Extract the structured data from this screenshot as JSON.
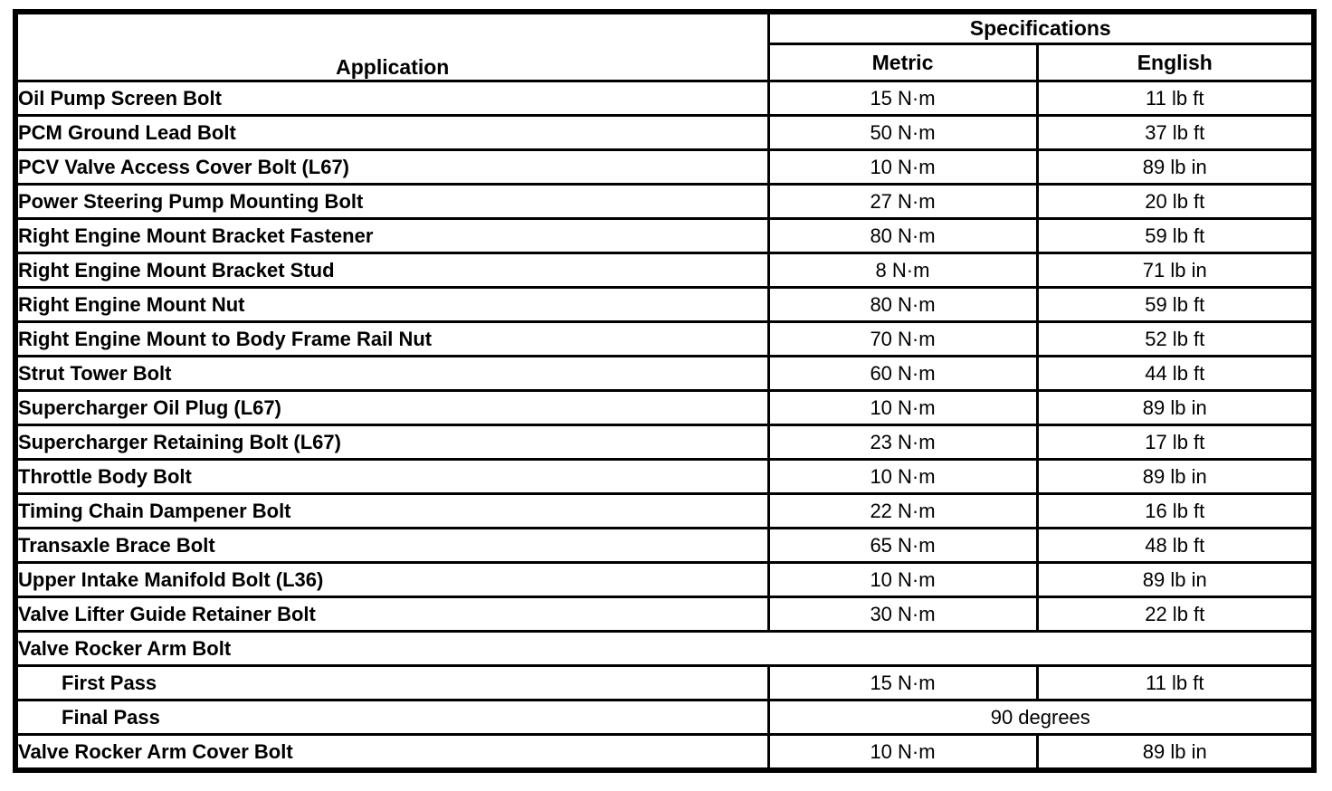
{
  "table": {
    "header": {
      "application": "Application",
      "specifications": "Specifications",
      "metric": "Metric",
      "english": "English"
    },
    "rows": [
      {
        "application": "Oil Pump Screen Bolt",
        "metric": "15 N·m",
        "english": "11 lb ft"
      },
      {
        "application": "PCM Ground Lead Bolt",
        "metric": "50 N·m",
        "english": "37 lb ft"
      },
      {
        "application": "PCV Valve Access Cover Bolt (L67)",
        "metric": "10 N·m",
        "english": "89 lb in"
      },
      {
        "application": "Power Steering Pump Mounting Bolt",
        "metric": "27 N·m",
        "english": "20 lb ft"
      },
      {
        "application": "Right Engine Mount Bracket Fastener",
        "metric": "80 N·m",
        "english": "59 lb ft"
      },
      {
        "application": "Right Engine Mount Bracket Stud",
        "metric": "8 N·m",
        "english": "71 lb in"
      },
      {
        "application": "Right Engine Mount Nut",
        "metric": "80 N·m",
        "english": "59 lb ft"
      },
      {
        "application": "Right Engine Mount to Body Frame Rail Nut",
        "metric": "70 N·m",
        "english": "52 lb ft"
      },
      {
        "application": "Strut Tower Bolt",
        "metric": "60 N·m",
        "english": "44 lb ft"
      },
      {
        "application": "Supercharger Oil Plug (L67)",
        "metric": "10 N·m",
        "english": "89 lb in"
      },
      {
        "application": "Supercharger Retaining Bolt (L67)",
        "metric": "23 N·m",
        "english": "17 lb ft"
      },
      {
        "application": "Throttle Body Bolt",
        "metric": "10 N·m",
        "english": "89 lb in"
      },
      {
        "application": "Timing Chain Dampener Bolt",
        "metric": "22 N·m",
        "english": "16 lb ft"
      },
      {
        "application": "Transaxle Brace Bolt",
        "metric": "65 N·m",
        "english": "48 lb ft"
      },
      {
        "application": "Upper Intake Manifold Bolt (L36)",
        "metric": "10 N·m",
        "english": "89 lb in"
      },
      {
        "application": "Valve Lifter Guide Retainer Bolt",
        "metric": "30 N·m",
        "english": "22 lb ft"
      },
      {
        "application": "Valve Rocker Arm Bolt",
        "span": "all"
      },
      {
        "application": "First Pass",
        "indent": true,
        "metric": "15 N·m",
        "english": "11 lb ft"
      },
      {
        "application": "Final Pass",
        "indent": true,
        "merged": "90 degrees"
      },
      {
        "application": "Valve Rocker Arm Cover Bolt",
        "metric": "10 N·m",
        "english": "89 lb in"
      }
    ]
  }
}
